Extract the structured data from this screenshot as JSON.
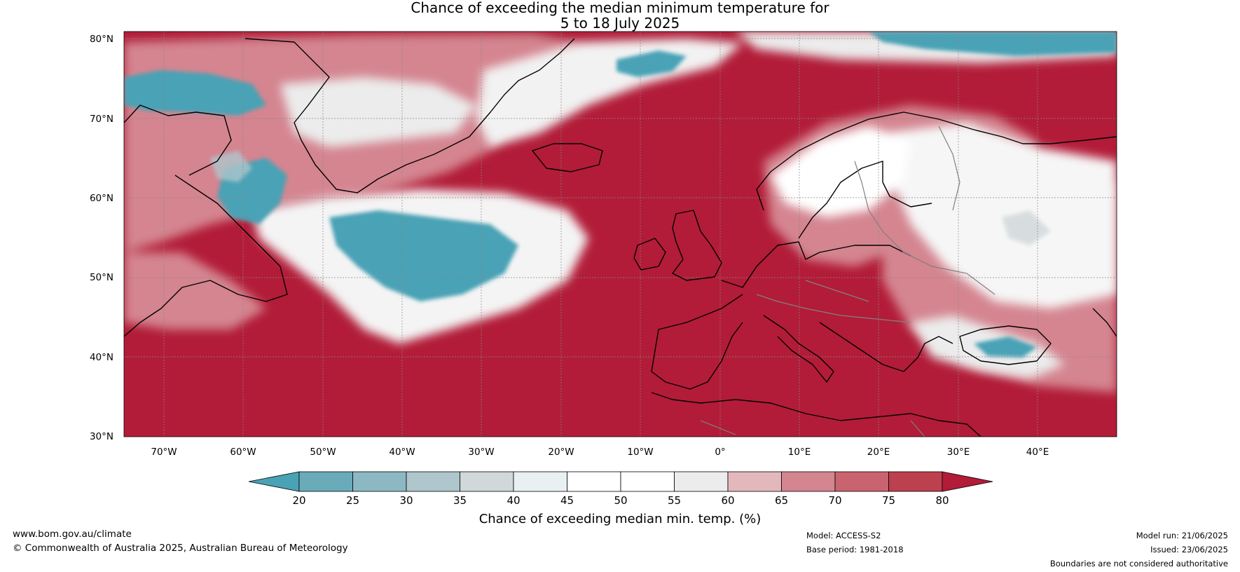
{
  "title": {
    "line1": "Chance of exceeding the median minimum temperature for",
    "line2": "5 to 18 July 2025"
  },
  "map": {
    "region": "North Atlantic and Europe",
    "lon_range": [
      -75,
      50
    ],
    "lat_range": [
      30,
      81
    ],
    "lat_labels": [
      "30°N",
      "40°N",
      "50°N",
      "60°N",
      "70°N",
      "80°N"
    ],
    "lat_values": [
      30,
      40,
      50,
      60,
      70,
      80
    ],
    "lon_labels": [
      "70°W",
      "60°W",
      "50°W",
      "40°W",
      "30°W",
      "20°W",
      "10°W",
      "0°",
      "10°E",
      "20°E",
      "30°E",
      "40°E"
    ],
    "lon_values": [
      -70,
      -60,
      -50,
      -40,
      -30,
      -20,
      -10,
      0,
      10,
      20,
      30,
      40
    ],
    "dominant_color": "#b21c38"
  },
  "colorbar": {
    "title": "Chance of exceeding median min. temp. (%)",
    "levels": [
      "20",
      "25",
      "30",
      "35",
      "40",
      "45",
      "50",
      "55",
      "60",
      "65",
      "70",
      "75",
      "80"
    ],
    "colors": [
      "#4aa2b5",
      "#6aabba",
      "#8cb8c3",
      "#afc6cc",
      "#d0d8da",
      "#e9f0f2",
      "#ffffff",
      "#ffffff",
      "#ececec",
      "#e3b8bd",
      "#d48590",
      "#c8636f",
      "#bd404e",
      "#b21c38"
    ]
  },
  "footer": {
    "url": "www.bom.gov.au/climate",
    "copyright": "© Commonwealth of Australia 2025, Australian Bureau of Meteorology",
    "model": "Model: ACCESS-S2",
    "base_period": "Base period: 1981-2018",
    "model_run": "Model run: 21/06/2025",
    "issued": "Issued: 23/06/2025",
    "disclaimer": "Boundaries are not considered authoritative"
  }
}
